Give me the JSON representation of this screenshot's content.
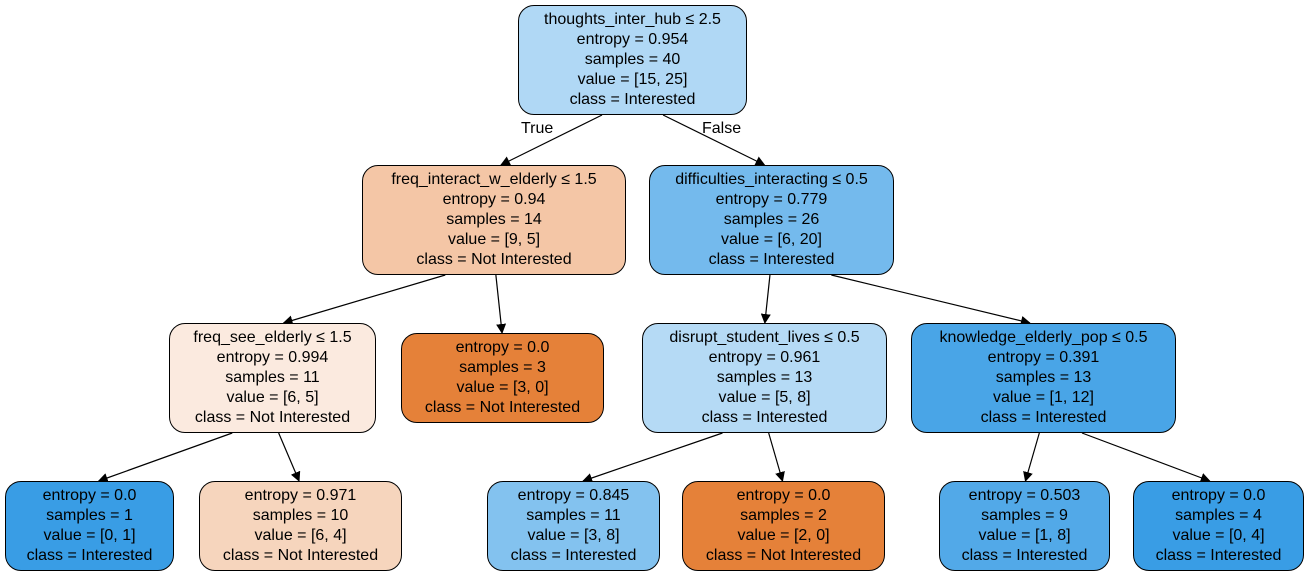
{
  "tree": {
    "edge_labels": {
      "true_label": "True",
      "false_label": "False"
    },
    "nodes": [
      {
        "id": "n0",
        "split": "thoughts_inter_hub ≤ 2.5",
        "entropy": "entropy = 0.954",
        "samples": "samples = 40",
        "value": "value = [15, 25]",
        "class": "class = Interested",
        "fill": "#b0d8f5"
      },
      {
        "id": "n1",
        "split": "freq_interact_w_elderly ≤ 1.5",
        "entropy": "entropy = 0.94",
        "samples": "samples = 14",
        "value": "value = [9, 5]",
        "class": "class = Not Interested",
        "fill": "#f4c6a6"
      },
      {
        "id": "n2",
        "split": "difficulties_interacting ≤ 0.5",
        "entropy": "entropy = 0.779",
        "samples": "samples = 26",
        "value": "value = [6, 20]",
        "class": "class = Interested",
        "fill": "#74baed"
      },
      {
        "id": "n3",
        "split": "freq_see_elderly ≤ 1.5",
        "entropy": "entropy = 0.994",
        "samples": "samples = 11",
        "value": "value = [6, 5]",
        "class": "class = Not Interested",
        "fill": "#fbeadf"
      },
      {
        "id": "n4",
        "split": "",
        "entropy": "entropy = 0.0",
        "samples": "samples = 3",
        "value": "value = [3, 0]",
        "class": "class = Not Interested",
        "fill": "#e58139"
      },
      {
        "id": "n5",
        "split": "disrupt_student_lives ≤ 0.5",
        "entropy": "entropy = 0.961",
        "samples": "samples = 13",
        "value": "value = [5, 8]",
        "class": "class = Interested",
        "fill": "#b5daf5"
      },
      {
        "id": "n6",
        "split": "knowledge_elderly_pop ≤ 0.5",
        "entropy": "entropy = 0.391",
        "samples": "samples = 13",
        "value": "value = [1, 12]",
        "class": "class = Interested",
        "fill": "#49a5e7"
      },
      {
        "id": "n7",
        "split": "",
        "entropy": "entropy = 0.0",
        "samples": "samples = 1",
        "value": "value = [0, 1]",
        "class": "class = Interested",
        "fill": "#399de5"
      },
      {
        "id": "n8",
        "split": "",
        "entropy": "entropy = 0.971",
        "samples": "samples = 10",
        "value": "value = [6, 4]",
        "class": "class = Not Interested",
        "fill": "#f6d5bd"
      },
      {
        "id": "n9",
        "split": "",
        "entropy": "entropy = 0.845",
        "samples": "samples = 11",
        "value": "value = [3, 8]",
        "class": "class = Interested",
        "fill": "#83c2ef"
      },
      {
        "id": "n10",
        "split": "",
        "entropy": "entropy = 0.0",
        "samples": "samples = 2",
        "value": "value = [2, 0]",
        "class": "class = Not Interested",
        "fill": "#e58139"
      },
      {
        "id": "n11",
        "split": "",
        "entropy": "entropy = 0.503",
        "samples": "samples = 9",
        "value": "value = [1, 8]",
        "class": "class = Interested",
        "fill": "#52a9e8"
      },
      {
        "id": "n12",
        "split": "",
        "entropy": "entropy = 0.0",
        "samples": "samples = 4",
        "value": "value = [0, 4]",
        "class": "class = Interested",
        "fill": "#399de5"
      }
    ],
    "edges": [
      [
        "n0",
        "n1"
      ],
      [
        "n0",
        "n2"
      ],
      [
        "n1",
        "n3"
      ],
      [
        "n1",
        "n4"
      ],
      [
        "n2",
        "n5"
      ],
      [
        "n2",
        "n6"
      ],
      [
        "n3",
        "n7"
      ],
      [
        "n3",
        "n8"
      ],
      [
        "n5",
        "n9"
      ],
      [
        "n5",
        "n10"
      ],
      [
        "n6",
        "n11"
      ],
      [
        "n6",
        "n12"
      ]
    ]
  }
}
